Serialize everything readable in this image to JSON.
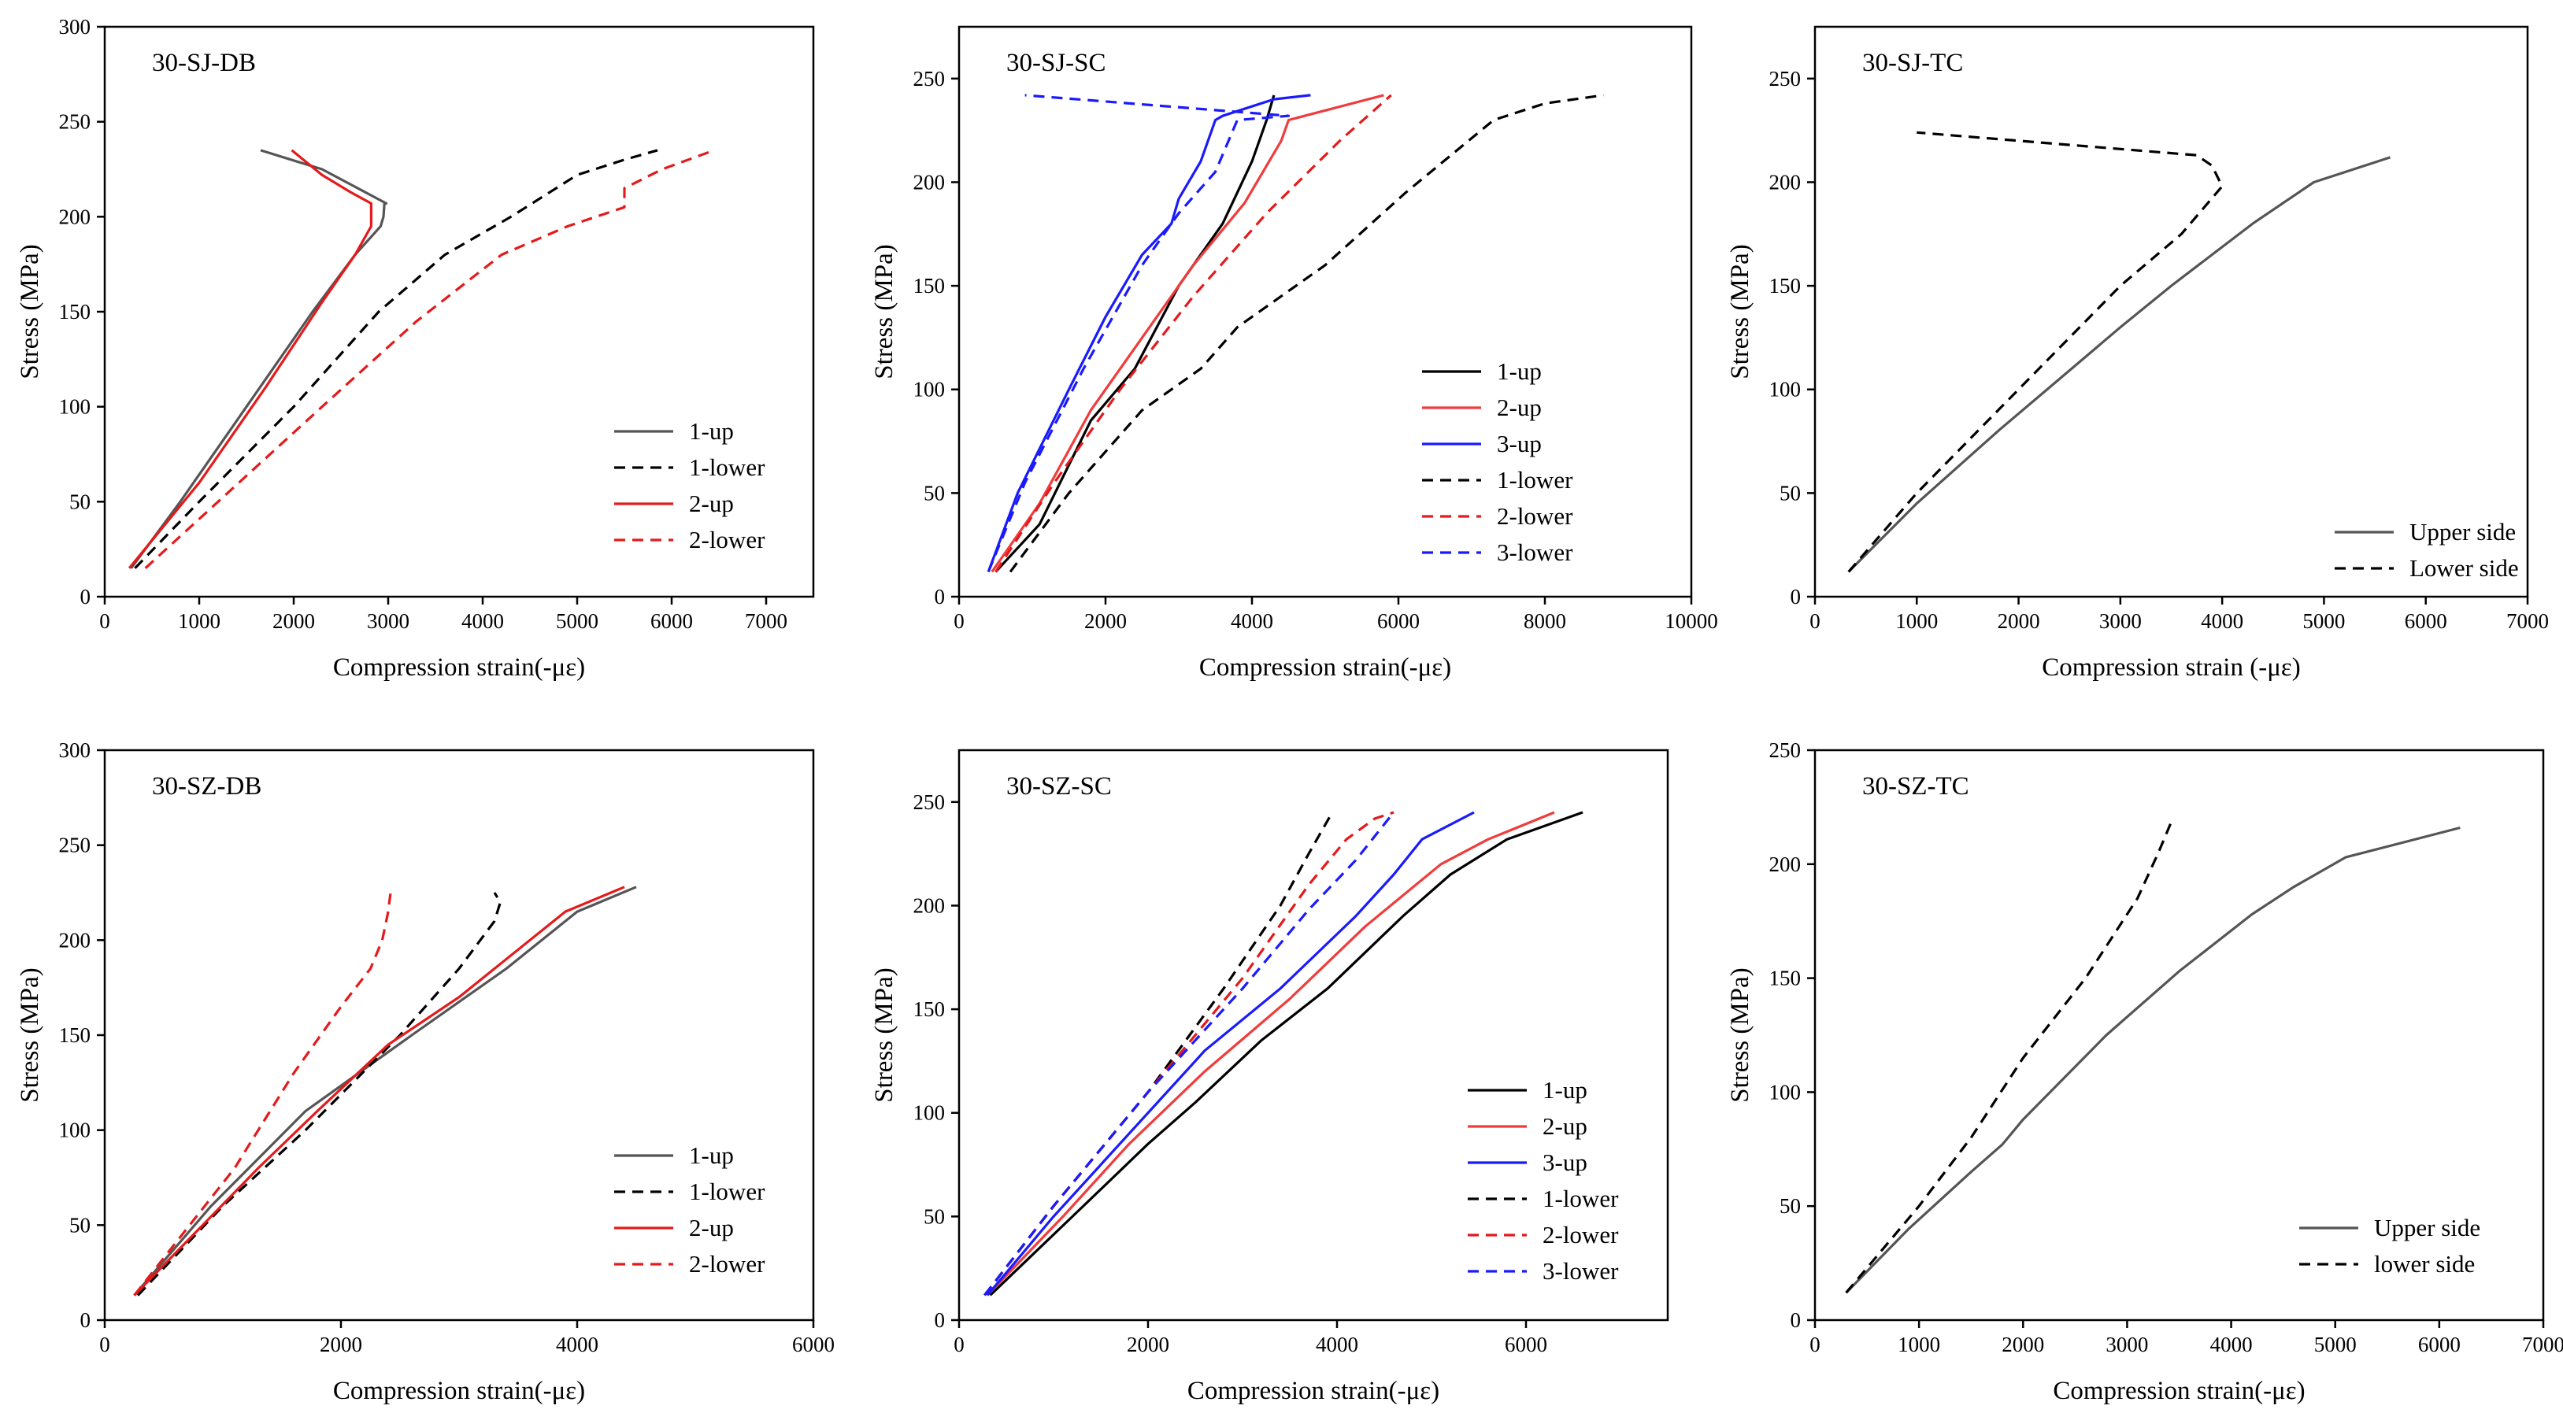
{
  "chart_data": [
    {
      "type": "line",
      "title": "30-SJ-DB",
      "xlabel": "Compression strain(-με)",
      "ylabel": "Stress (MPa)",
      "xlim": [
        0,
        7500
      ],
      "ylim": [
        0,
        300
      ],
      "xticks": [
        0,
        1000,
        2000,
        3000,
        4000,
        5000,
        6000,
        7000
      ],
      "yticks": [
        0,
        50,
        100,
        150,
        200,
        250,
        300
      ],
      "legend_position": "bottom-right",
      "series": [
        {
          "name": "1-up",
          "color": "#555555",
          "dash": false,
          "x": [
            280,
            800,
            1500,
            2200,
            2650,
            2920,
            2950,
            2960,
            2980,
            2300,
            1650
          ],
          "y": [
            15,
            50,
            100,
            150,
            180,
            195,
            200,
            207,
            207,
            225,
            235
          ]
        },
        {
          "name": "1-lower",
          "color": "#000000",
          "dash": true,
          "x": [
            320,
            1000,
            2000,
            2900,
            3600,
            4300,
            5000,
            5500,
            5850
          ],
          "y": [
            15,
            50,
            100,
            150,
            180,
            200,
            222,
            230,
            235
          ]
        },
        {
          "name": "2-up",
          "color": "#e41a1c",
          "dash": false,
          "x": [
            260,
            1000,
            1700,
            2300,
            2650,
            2820,
            2820,
            2600,
            2300,
            1980
          ],
          "y": [
            15,
            60,
            110,
            155,
            180,
            195,
            207,
            213,
            222,
            235
          ]
        },
        {
          "name": "2-lower",
          "color": "#e41a1c",
          "dash": true,
          "x": [
            430,
            1200,
            2300,
            3300,
            4200,
            4900,
            5500,
            5500,
            5900,
            6450
          ],
          "y": [
            15,
            50,
            100,
            145,
            180,
            195,
            205,
            215,
            225,
            235
          ]
        }
      ]
    },
    {
      "type": "line",
      "title": "30-SJ-SC",
      "xlabel": "Compression strain(-με)",
      "ylabel": "Stress (MPa)",
      "xlim": [
        0,
        10000
      ],
      "ylim": [
        0,
        275
      ],
      "xticks": [
        0,
        2000,
        4000,
        6000,
        8000,
        10000
      ],
      "xtick_labels": [
        "0",
        "2000",
        "4000",
        "6000",
        "8000",
        "10000"
      ],
      "yticks": [
        0,
        50,
        100,
        150,
        200,
        250
      ],
      "legend_position": "bottom-right",
      "series": [
        {
          "name": "1-up",
          "color": "#000000",
          "dash": false,
          "x": [
            500,
            1100,
            1800,
            2400,
            3000,
            3600,
            4000,
            4200,
            4300
          ],
          "y": [
            12,
            35,
            85,
            110,
            150,
            180,
            210,
            230,
            242
          ]
        },
        {
          "name": "2-up",
          "color": "#f03c3c",
          "dash": false,
          "x": [
            450,
            1100,
            1800,
            2500,
            3200,
            3900,
            4400,
            4500,
            5800
          ],
          "y": [
            12,
            45,
            90,
            125,
            160,
            190,
            220,
            230,
            242
          ]
        },
        {
          "name": "3-up",
          "color": "#1a1aff",
          "dash": false,
          "x": [
            400,
            800,
            1500,
            2000,
            2500,
            2900,
            3000,
            3300,
            3500,
            3600,
            4300,
            4800
          ],
          "y": [
            12,
            50,
            100,
            135,
            165,
            180,
            192,
            210,
            230,
            232,
            240,
            242
          ]
        },
        {
          "name": "1-lower",
          "color": "#000000",
          "dash": true,
          "x": [
            700,
            1500,
            2500,
            3300,
            3800,
            5000,
            6100,
            7300,
            8000,
            8800
          ],
          "y": [
            12,
            50,
            90,
            110,
            130,
            160,
            195,
            230,
            238,
            242
          ]
        },
        {
          "name": "2-lower",
          "color": "#e41a1c",
          "dash": true,
          "x": [
            500,
            1300,
            2200,
            3200,
            4200,
            5200,
            5900
          ],
          "y": [
            12,
            55,
            100,
            145,
            185,
            220,
            242
          ]
        },
        {
          "name": "3-lower",
          "color": "#1a1aff",
          "dash": true,
          "x": [
            400,
            900,
            1700,
            2500,
            3000,
            3500,
            3800,
            4500,
            900
          ],
          "y": [
            12,
            55,
            110,
            160,
            185,
            205,
            230,
            232,
            242
          ]
        }
      ]
    },
    {
      "type": "line",
      "title": "30-SJ-TC",
      "xlabel": "Compression strain (-με)",
      "ylabel": "Stress (MPa)",
      "xlim": [
        0,
        7000
      ],
      "ylim": [
        0,
        275
      ],
      "xticks": [
        0,
        1000,
        2000,
        3000,
        4000,
        5000,
        6000,
        7000
      ],
      "yticks": [
        0,
        50,
        100,
        150,
        200,
        250
      ],
      "legend_position": "bottom-right",
      "series": [
        {
          "name": "Upper side",
          "color": "#555555",
          "dash": false,
          "x": [
            330,
            1000,
            1800,
            2400,
            3000,
            3500,
            3900,
            4300,
            4900,
            5650
          ],
          "y": [
            12,
            45,
            80,
            105,
            130,
            150,
            165,
            180,
            200,
            212
          ]
        },
        {
          "name": "Lower side",
          "color": "#000000",
          "dash": true,
          "x": [
            330,
            1000,
            2000,
            3000,
            3600,
            4000,
            3900,
            3750,
            1000
          ],
          "y": [
            12,
            50,
            100,
            150,
            175,
            198,
            208,
            213,
            224
          ]
        }
      ]
    },
    {
      "type": "line",
      "title": "30-SZ-DB",
      "xlabel": "Compression strain(-με)",
      "ylabel": "Stress (MPa)",
      "xlim": [
        0,
        6000
      ],
      "ylim": [
        0,
        300
      ],
      "xticks": [
        0,
        2000,
        4000,
        6000
      ],
      "yticks": [
        0,
        50,
        100,
        150,
        200,
        250,
        300
      ],
      "legend_position": "bottom-right",
      "series": [
        {
          "name": "1-up",
          "color": "#555555",
          "dash": false,
          "x": [
            250,
            900,
            1700,
            2600,
            3400,
            4000,
            4500
          ],
          "y": [
            13,
            60,
            110,
            150,
            185,
            215,
            228
          ]
        },
        {
          "name": "1-lower",
          "color": "#000000",
          "dash": true,
          "x": [
            280,
            1000,
            1700,
            2500,
            3000,
            3300,
            3350,
            3300
          ],
          "y": [
            13,
            60,
            100,
            150,
            185,
            210,
            220,
            225
          ]
        },
        {
          "name": "2-up",
          "color": "#e41a1c",
          "dash": false,
          "x": [
            250,
            1300,
            1800,
            2400,
            3000,
            3900,
            4400
          ],
          "y": [
            13,
            80,
            110,
            145,
            170,
            215,
            228
          ]
        },
        {
          "name": "2-lower",
          "color": "#e41a1c",
          "dash": true,
          "x": [
            250,
            1100,
            1600,
            2000,
            2250,
            2350,
            2400,
            2420
          ],
          "y": [
            13,
            80,
            130,
            165,
            185,
            200,
            215,
            225
          ]
        }
      ]
    },
    {
      "type": "line",
      "title": "30-SZ-SC",
      "xlabel": "Compression strain(-με)",
      "ylabel": "Stress (MPa)",
      "xlim": [
        0,
        7500
      ],
      "ylim": [
        0,
        275
      ],
      "xticks": [
        0,
        2000,
        4000,
        6000
      ],
      "yticks": [
        0,
        50,
        100,
        150,
        200,
        250
      ],
      "legend_position": "bottom-right",
      "series": [
        {
          "name": "1-up",
          "color": "#000000",
          "dash": false,
          "x": [
            330,
            1200,
            2000,
            2500,
            3200,
            3900,
            4700,
            5200,
            5800,
            6600
          ],
          "y": [
            12,
            50,
            85,
            105,
            135,
            160,
            195,
            215,
            232,
            245
          ]
        },
        {
          "name": "2-up",
          "color": "#f03c3c",
          "dash": false,
          "x": [
            300,
            1100,
            1800,
            2600,
            3500,
            4300,
            5100,
            5600,
            6300
          ],
          "y": [
            12,
            50,
            85,
            120,
            155,
            190,
            220,
            232,
            245
          ]
        },
        {
          "name": "3-up",
          "color": "#1a1aff",
          "dash": false,
          "x": [
            300,
            1000,
            1800,
            2600,
            3400,
            4200,
            4600,
            4900,
            5450
          ],
          "y": [
            12,
            50,
            90,
            130,
            160,
            195,
            215,
            232,
            245
          ]
        },
        {
          "name": "1-lower",
          "color": "#000000",
          "dash": true,
          "x": [
            270,
            1000,
            2000,
            2800,
            3400,
            3700,
            3950
          ],
          "y": [
            12,
            55,
            110,
            160,
            200,
            225,
            245
          ]
        },
        {
          "name": "2-lower",
          "color": "#e41a1c",
          "dash": true,
          "x": [
            270,
            1000,
            2000,
            3000,
            3700,
            4100,
            4400,
            4600
          ],
          "y": [
            12,
            55,
            110,
            165,
            210,
            232,
            242,
            245
          ]
        },
        {
          "name": "3-lower",
          "color": "#1a1aff",
          "dash": true,
          "x": [
            270,
            1000,
            2000,
            3000,
            3700,
            4200,
            4600
          ],
          "y": [
            12,
            55,
            110,
            160,
            198,
            222,
            245
          ]
        }
      ]
    },
    {
      "type": "line",
      "title": "30-SZ-TC",
      "xlabel": "Compression strain(-με)",
      "ylabel": "Stress (MPa)",
      "xlim": [
        0,
        7000
      ],
      "ylim": [
        0,
        250
      ],
      "xticks": [
        0,
        1000,
        2000,
        3000,
        4000,
        5000,
        6000,
        7000
      ],
      "yticks": [
        0,
        50,
        100,
        150,
        200,
        250
      ],
      "legend_position": "bottom-right",
      "series": [
        {
          "name": "Upper side",
          "color": "#555555",
          "dash": false,
          "x": [
            300,
            900,
            1500,
            1800,
            2000,
            2800,
            3500,
            4200,
            4600,
            5100,
            6200
          ],
          "y": [
            12,
            40,
            65,
            77,
            88,
            125,
            153,
            178,
            190,
            203,
            216
          ]
        },
        {
          "name": "lower side",
          "color": "#000000",
          "dash": true,
          "x": [
            300,
            1000,
            1500,
            2000,
            2600,
            3100,
            3300,
            3420
          ],
          "y": [
            12,
            50,
            80,
            115,
            150,
            185,
            205,
            218
          ]
        }
      ]
    }
  ]
}
